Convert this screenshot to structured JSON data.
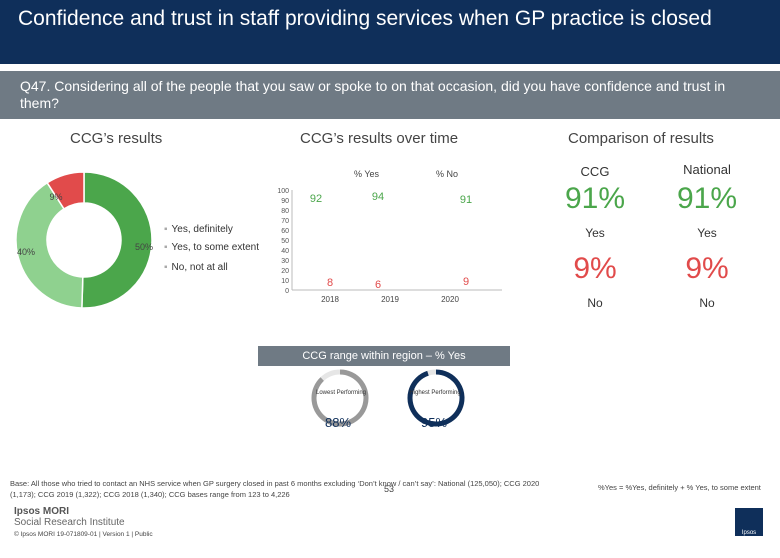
{
  "header": {
    "title": "Confidence and trust in staff providing services when GP practice is closed",
    "question": "Q47. Considering all of the people that you saw or spoke to on that occasion, did you have confidence and trust in them?"
  },
  "sections": {
    "ccg_results": "CCG’s results",
    "over_time": "CCG’s results over time",
    "comparison": "Comparison of results"
  },
  "chart_data": [
    {
      "type": "pie",
      "title": "CCG’s results",
      "categories": [
        "Yes, definitely",
        "Yes, to some extent",
        "No, not at all"
      ],
      "values": [
        50,
        40,
        9
      ],
      "labels": [
        "50%",
        "40%",
        "9%"
      ],
      "colors": [
        "#4ba64b",
        "#8fd18f",
        "#e14b4b"
      ]
    },
    {
      "type": "bar",
      "title": "CCG’s results over time",
      "categories": [
        "2018",
        "2019",
        "2020"
      ],
      "series": [
        {
          "name": "% Yes",
          "values": [
            92,
            94,
            91
          ],
          "color": "#4ba64b"
        },
        {
          "name": "% No",
          "values": [
            8,
            6,
            9
          ],
          "color": "#e14b4b"
        }
      ],
      "ylim": [
        0,
        100
      ],
      "yticks": [
        "0",
        "10",
        "20",
        "30",
        "40",
        "50",
        "60",
        "70",
        "80",
        "90",
        "100"
      ]
    }
  ],
  "comparison": {
    "col1": "CCG",
    "col2": "National",
    "yes_ccg": "91%",
    "yes_nat": "91%",
    "yes_label": "Yes",
    "no_ccg": "9%",
    "no_nat": "9%",
    "no_label": "No"
  },
  "range": {
    "title": "CCG range within region – % Yes",
    "lowest_label": "Lowest Performing",
    "highest_label": "Highest Performing",
    "lowest_value": "88%",
    "highest_value": "95%",
    "lowest_fraction": 0.88,
    "highest_fraction": 0.95
  },
  "footer": {
    "base": "Base: All those who tried to contact an NHS service when GP surgery closed in past 6 months excluding ‘Don’t know / can’t say’: National (125,050); CCG 2020 (1,173); CCG 2019 (1,322); CCG 2018 (1,340); CCG bases range from 123 to 4,226",
    "formula": "%Yes = %Yes, definitely + % Yes, to some extent",
    "page": "53",
    "logo_line1": "Ipsos MORI",
    "logo_line2": "Social Research Institute",
    "copyright": "© Ipsos MORI    19-071809-01 | Version 1 | Public"
  }
}
